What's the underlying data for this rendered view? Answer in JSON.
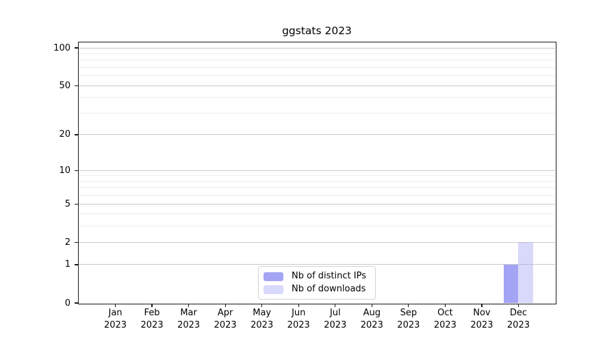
{
  "title": "ggstats 2023",
  "chart_data": {
    "type": "bar",
    "title": "ggstats 2023",
    "x": [
      "Jan",
      "Feb",
      "Mar",
      "Apr",
      "May",
      "Jun",
      "Jul",
      "Aug",
      "Sep",
      "Oct",
      "Nov",
      "Dec"
    ],
    "x_year": "2023",
    "series": [
      {
        "name": "Nb of distinct IPs",
        "color": "#a4a4f5",
        "values": [
          0,
          0,
          0,
          0,
          0,
          0,
          0,
          0,
          0,
          0,
          0,
          1
        ]
      },
      {
        "name": "Nb of downloads",
        "color": "rgba(164,164,245,0.42)",
        "values": [
          0,
          0,
          0,
          0,
          0,
          0,
          0,
          0,
          0,
          0,
          0,
          2
        ]
      }
    ],
    "y_axis": {
      "scale": "log1p",
      "ticks": [
        0,
        1,
        2,
        5,
        10,
        20,
        50,
        100
      ],
      "tick_labels": [
        "0",
        "1",
        "2",
        "5",
        "10",
        "20",
        "50",
        "100"
      ],
      "major_gridlines": [
        1,
        2,
        5,
        10,
        20,
        50,
        100
      ],
      "minor_gridlines": [
        3,
        4,
        6,
        7,
        8,
        9,
        30,
        40,
        60,
        70,
        80,
        90
      ],
      "range": [
        0,
        110
      ]
    },
    "legend": {
      "position": "bottom-center-inside",
      "entries": [
        "Nb of distinct IPs",
        "Nb of downloads"
      ]
    },
    "grid": "horizontal major and minor"
  },
  "colors": {
    "major_grid": "#c8c8c8",
    "minor_grid": "#ededed",
    "panel_border": "#171717",
    "tick": "#171717",
    "text": "#000000",
    "legend_border": "#d3d3d3",
    "legend_bg": "#ffffff",
    "background": "#ffffff"
  }
}
